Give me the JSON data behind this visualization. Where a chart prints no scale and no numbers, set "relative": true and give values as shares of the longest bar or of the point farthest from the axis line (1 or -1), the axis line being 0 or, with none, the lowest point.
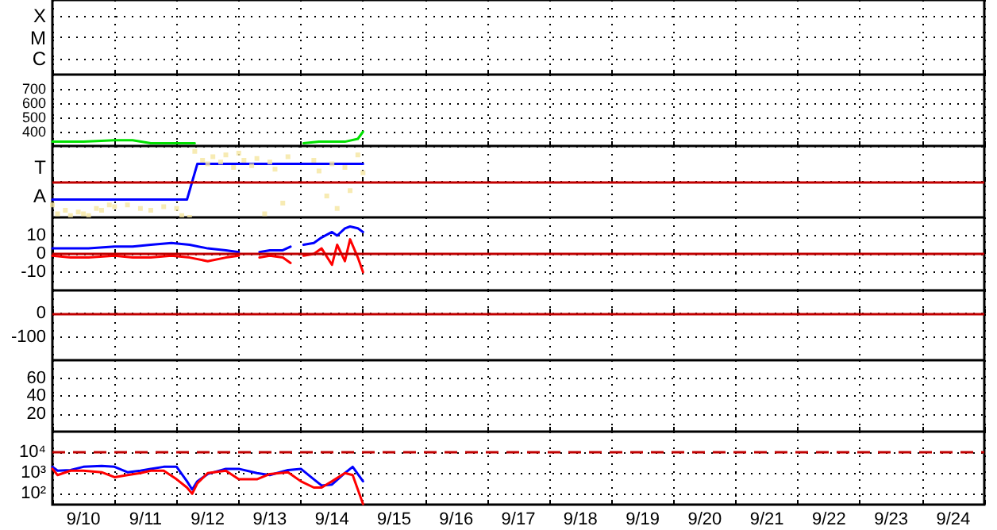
{
  "chart_data": [
    {
      "type": "other",
      "annotations": [
        "X",
        "M",
        "C"
      ]
    },
    {
      "type": "line",
      "xlim": [
        "--09-10T00:00",
        "--09-25T00:00"
      ],
      "ylim": [
        300,
        800
      ],
      "xticks": [
        {
          "value": "--09-10T12:00",
          "label": "9/10"
        },
        {
          "value": "--09-11T12:00",
          "label": "9/11"
        },
        {
          "value": "--09-12T12:00",
          "label": "9/12"
        },
        {
          "value": "--09-13T12:00",
          "label": "9/13"
        },
        {
          "value": "--09-14T12:00",
          "label": "9/14"
        },
        {
          "value": "--09-15T12:00",
          "label": "9/15"
        },
        {
          "value": "--09-16T12:00",
          "label": "9/16"
        },
        {
          "value": "--09-17T12:00",
          "label": "9/17"
        },
        {
          "value": "--09-18T12:00",
          "label": "9/18"
        },
        {
          "value": "--09-19T12:00",
          "label": "9/19"
        },
        {
          "value": "--09-20T12:00",
          "label": "9/20"
        },
        {
          "value": "--09-21T12:00",
          "label": "9/21"
        },
        {
          "value": "--09-22T12:00",
          "label": "9/22"
        },
        {
          "value": "--09-23T12:00",
          "label": "9/23"
        },
        {
          "value": "--09-24T12:00",
          "label": "9/24"
        }
      ],
      "yticks": [
        400,
        500,
        600,
        700
      ],
      "grid": true,
      "tick_labels": "y",
      "x": [
        "--09-10T00:00",
        "--09-10T12:00",
        "--09-11T00:00",
        "--09-11T07:00",
        "--09-11T14:00",
        "--09-12T00:00",
        "--09-12T07:00",
        "--09-12T08:00",
        "--09-14T01:00",
        "--09-14T07:00",
        "--09-14T12:00",
        "--09-14T17:00",
        "--09-14T22:00",
        "--09-15T00:00"
      ],
      "series": [
        {
          "color": "#00e000",
          "values": [
            330,
            330,
            340,
            340,
            320,
            320,
            320,
            null,
            320,
            330,
            330,
            330,
            350,
            400
          ]
        }
      ]
    },
    {
      "type": "line",
      "relative": true,
      "xlim": [
        "--09-10T00:00",
        "--09-25T00:00"
      ],
      "xticks": [
        {
          "value": "--09-10T12:00",
          "label": "9/10"
        },
        {
          "value": "--09-11T12:00",
          "label": "9/11"
        },
        {
          "value": "--09-12T12:00",
          "label": "9/12"
        },
        {
          "value": "--09-13T12:00",
          "label": "9/13"
        },
        {
          "value": "--09-14T12:00",
          "label": "9/14"
        },
        {
          "value": "--09-15T12:00",
          "label": "9/15"
        },
        {
          "value": "--09-16T12:00",
          "label": "9/16"
        },
        {
          "value": "--09-17T12:00",
          "label": "9/17"
        },
        {
          "value": "--09-18T12:00",
          "label": "9/18"
        },
        {
          "value": "--09-19T12:00",
          "label": "9/19"
        },
        {
          "value": "--09-20T12:00",
          "label": "9/20"
        },
        {
          "value": "--09-21T12:00",
          "label": "9/21"
        },
        {
          "value": "--09-22T12:00",
          "label": "9/22"
        },
        {
          "value": "--09-23T12:00",
          "label": "9/23"
        },
        {
          "value": "--09-24T12:00",
          "label": "9/24"
        }
      ],
      "grid": true,
      "tick_labels": "y",
      "annotations": [
        "T",
        "A"
      ],
      "ref_lines": [
        {
          "axis": "y",
          "value": 0,
          "color": "#c00000"
        }
      ],
      "series": [
        {
          "type": "scatter",
          "marker": "square",
          "color": "#f5e6a0",
          "x": [
            "--09-10T00:00",
            "--09-10T02:00",
            "--09-10T05:00",
            "--09-10T07:00",
            "--09-10T10:00",
            "--09-10T12:00",
            "--09-10T14:00",
            "--09-10T17:00",
            "--09-10T19:00",
            "--09-10T22:00",
            "--09-11T00:00",
            "--09-11T05:00",
            "--09-11T10:00",
            "--09-11T14:00",
            "--09-11T19:00",
            "--09-12T00:00",
            "--09-12T02:00",
            "--09-12T05:00",
            "--09-12T07:00",
            "--09-12T10:00",
            "--09-12T12:00",
            "--09-12T14:00",
            "--09-12T17:00",
            "--09-12T19:00",
            "--09-12T22:00",
            "--09-13T00:00",
            "--09-13T02:00",
            "--09-13T05:00",
            "--09-13T07:00",
            "--09-13T10:00",
            "--09-13T12:00",
            "--09-13T14:00",
            "--09-13T17:00",
            "--09-13T19:00",
            "--09-14T05:00",
            "--09-14T07:00",
            "--09-14T10:00",
            "--09-14T12:00",
            "--09-14T14:00",
            "--09-14T17:00",
            "--09-14T19:00",
            "--09-14T22:00",
            "--09-15T00:00"
          ],
          "values": [
            -0.65,
            -0.9,
            -0.8,
            -0.95,
            -0.85,
            -0.9,
            -0.95,
            -0.75,
            -0.8,
            -0.65,
            -0.7,
            -0.65,
            -0.75,
            -0.8,
            -0.7,
            -0.75,
            -0.95,
            -1,
            0.85,
            0.6,
            0.5,
            0.7,
            0.55,
            0.75,
            0.4,
            0.8,
            0.6,
            0.45,
            0.65,
            -0.9,
            0.55,
            0.35,
            -0.6,
            0.7,
            0.6,
            0.3,
            -0.4,
            0.5,
            -0.75,
            0.4,
            -0.25,
            0.75,
            0.25
          ]
        },
        {
          "color": "#0000ff",
          "x": [
            "--09-10T00:00",
            "--09-12T04:00",
            "--09-12T08:00",
            "--09-15T00:00"
          ],
          "values": [
            -0.5,
            -0.5,
            0.5,
            0.5
          ]
        }
      ]
    },
    {
      "type": "line",
      "xlim": [
        "--09-10T00:00",
        "--09-25T00:00"
      ],
      "ylim": [
        -20,
        20
      ],
      "xticks": [
        {
          "value": "--09-10T12:00",
          "label": "9/10"
        },
        {
          "value": "--09-11T12:00",
          "label": "9/11"
        },
        {
          "value": "--09-12T12:00",
          "label": "9/12"
        },
        {
          "value": "--09-13T12:00",
          "label": "9/13"
        },
        {
          "value": "--09-14T12:00",
          "label": "9/14"
        },
        {
          "value": "--09-15T12:00",
          "label": "9/15"
        },
        {
          "value": "--09-16T12:00",
          "label": "9/16"
        },
        {
          "value": "--09-17T12:00",
          "label": "9/17"
        },
        {
          "value": "--09-18T12:00",
          "label": "9/18"
        },
        {
          "value": "--09-19T12:00",
          "label": "9/19"
        },
        {
          "value": "--09-20T12:00",
          "label": "9/20"
        },
        {
          "value": "--09-21T12:00",
          "label": "9/21"
        },
        {
          "value": "--09-22T12:00",
          "label": "9/22"
        },
        {
          "value": "--09-23T12:00",
          "label": "9/23"
        },
        {
          "value": "--09-24T12:00",
          "label": "9/24"
        }
      ],
      "yticks": [
        -10,
        0,
        10
      ],
      "grid": true,
      "tick_labels": "y",
      "ref_lines": [
        {
          "axis": "y",
          "value": 0,
          "color": "#c00000"
        }
      ],
      "x": [
        "--09-10T00:00",
        "--09-10T07:00",
        "--09-10T14:00",
        "--09-11T00:00",
        "--09-11T07:00",
        "--09-11T14:00",
        "--09-11T22:00",
        "--09-12T05:00",
        "--09-12T12:00",
        "--09-12T19:00",
        "--09-13T00:00",
        "--09-13T01:00",
        "--09-13T08:00",
        "--09-13T12:00",
        "--09-13T17:00",
        "--09-13T20:00",
        "--09-13T23:00",
        "--09-14T01:00",
        "--09-14T05:00",
        "--09-14T08:00",
        "--09-14T12:00",
        "--09-14T14:00",
        "--09-14T17:00",
        "--09-14T19:00",
        "--09-14T22:00",
        "--09-15T00:00"
      ],
      "series": [
        {
          "color": "#0000ff",
          "values": [
            3,
            3,
            3,
            4,
            4,
            5,
            6,
            5,
            3,
            2,
            1,
            null,
            1,
            2,
            2,
            4,
            null,
            5,
            6,
            9,
            12,
            10,
            14,
            15,
            14,
            12
          ]
        },
        {
          "color": "#ff0000",
          "values": [
            -1,
            -2,
            -2,
            -1,
            -2,
            -2,
            -1,
            -2,
            -4,
            -2,
            -1,
            null,
            -2,
            -1,
            -2,
            -5,
            null,
            -1,
            0,
            3,
            -6,
            5,
            -4,
            8,
            -2,
            -10
          ]
        }
      ]
    },
    {
      "type": "line",
      "xlim": [
        "--09-10T00:00",
        "--09-25T00:00"
      ],
      "ylim": [
        -200,
        100
      ],
      "xticks": [
        {
          "value": "--09-10T12:00",
          "label": "9/10"
        },
        {
          "value": "--09-11T12:00",
          "label": "9/11"
        },
        {
          "value": "--09-12T12:00",
          "label": "9/12"
        },
        {
          "value": "--09-13T12:00",
          "label": "9/13"
        },
        {
          "value": "--09-14T12:00",
          "label": "9/14"
        },
        {
          "value": "--09-15T12:00",
          "label": "9/15"
        },
        {
          "value": "--09-16T12:00",
          "label": "9/16"
        },
        {
          "value": "--09-17T12:00",
          "label": "9/17"
        },
        {
          "value": "--09-18T12:00",
          "label": "9/18"
        },
        {
          "value": "--09-19T12:00",
          "label": "9/19"
        },
        {
          "value": "--09-20T12:00",
          "label": "9/20"
        },
        {
          "value": "--09-21T12:00",
          "label": "9/21"
        },
        {
          "value": "--09-22T12:00",
          "label": "9/22"
        },
        {
          "value": "--09-23T12:00",
          "label": "9/23"
        },
        {
          "value": "--09-24T12:00",
          "label": "9/24"
        }
      ],
      "yticks": [
        -100,
        0
      ],
      "grid": true,
      "tick_labels": "y",
      "ref_lines": [
        {
          "axis": "y",
          "value": 0,
          "color": "#c00000"
        }
      ]
    },
    {
      "type": "line",
      "xlim": [
        "--09-10T00:00",
        "--09-25T00:00"
      ],
      "ylim": [
        0,
        80
      ],
      "xticks": [
        {
          "value": "--09-10T12:00",
          "label": "9/10"
        },
        {
          "value": "--09-11T12:00",
          "label": "9/11"
        },
        {
          "value": "--09-12T12:00",
          "label": "9/12"
        },
        {
          "value": "--09-13T12:00",
          "label": "9/13"
        },
        {
          "value": "--09-14T12:00",
          "label": "9/14"
        },
        {
          "value": "--09-15T12:00",
          "label": "9/15"
        },
        {
          "value": "--09-16T12:00",
          "label": "9/16"
        },
        {
          "value": "--09-17T12:00",
          "label": "9/17"
        },
        {
          "value": "--09-18T12:00",
          "label": "9/18"
        },
        {
          "value": "--09-19T12:00",
          "label": "9/19"
        },
        {
          "value": "--09-20T12:00",
          "label": "9/20"
        },
        {
          "value": "--09-21T12:00",
          "label": "9/21"
        },
        {
          "value": "--09-22T12:00",
          "label": "9/22"
        },
        {
          "value": "--09-23T12:00",
          "label": "9/23"
        },
        {
          "value": "--09-24T12:00",
          "label": "9/24"
        }
      ],
      "yticks": [
        20,
        40,
        60
      ],
      "grid": true,
      "tick_labels": "y"
    },
    {
      "type": "line",
      "log": "y",
      "xlim": [
        "--09-10T00:00",
        "--09-25T00:00"
      ],
      "ylim": [
        30,
        100000
      ],
      "xticks": [
        {
          "value": "--09-10T12:00",
          "label": "9/10"
        },
        {
          "value": "--09-11T12:00",
          "label": "9/11"
        },
        {
          "value": "--09-12T12:00",
          "label": "9/12"
        },
        {
          "value": "--09-13T12:00",
          "label": "9/13"
        },
        {
          "value": "--09-14T12:00",
          "label": "9/14"
        },
        {
          "value": "--09-15T12:00",
          "label": "9/15"
        },
        {
          "value": "--09-16T12:00",
          "label": "9/16"
        },
        {
          "value": "--09-17T12:00",
          "label": "9/17"
        },
        {
          "value": "--09-18T12:00",
          "label": "9/18"
        },
        {
          "value": "--09-19T12:00",
          "label": "9/19"
        },
        {
          "value": "--09-20T12:00",
          "label": "9/20"
        },
        {
          "value": "--09-21T12:00",
          "label": "9/21"
        },
        {
          "value": "--09-22T12:00",
          "label": "9/22"
        },
        {
          "value": "--09-23T12:00",
          "label": "9/23"
        },
        {
          "value": "--09-24T12:00",
          "label": "9/24"
        }
      ],
      "yticks": [
        {
          "value": 100,
          "label": "10²"
        },
        {
          "value": 1000,
          "label": "10³"
        },
        {
          "value": 10000,
          "label": "10⁴"
        }
      ],
      "grid": true,
      "ref_lines": [
        {
          "axis": "y",
          "value": 10000,
          "color": "#c00000",
          "line_style": "dashed"
        }
      ],
      "x": [
        "--09-10T00:00",
        "--09-10T02:00",
        "--09-10T07:00",
        "--09-10T12:00",
        "--09-10T19:00",
        "--09-11T00:00",
        "--09-11T05:00",
        "--09-11T10:00",
        "--09-11T14:00",
        "--09-11T19:00",
        "--09-12T00:00",
        "--09-12T04:00",
        "--09-12T06:00",
        "--09-12T08:00",
        "--09-12T12:00",
        "--09-12T19:00",
        "--09-13T00:00",
        "--09-13T07:00",
        "--09-13T12:00",
        "--09-13T19:00",
        "--09-14T00:00",
        "--09-14T05:00",
        "--09-14T08:00",
        "--09-14T12:00",
        "--09-14T17:00",
        "--09-14T20:00",
        "--09-15T00:00"
      ],
      "series": [
        {
          "color": "#0000ff",
          "values": [
            2000,
            1300,
            1400,
            2000,
            2200,
            2000,
            1100,
            1300,
            1600,
            2000,
            2000,
            400,
            160,
            400,
            900,
            1600,
            1600,
            1000,
            800,
            1400,
            1600,
            500,
            250,
            280,
            1000,
            2000,
            400
          ]
        },
        {
          "color": "#ff0000",
          "values": [
            1600,
            800,
            1300,
            1300,
            1100,
            630,
            800,
            1000,
            1300,
            1300,
            500,
            200,
            100,
            320,
            1000,
            1300,
            500,
            500,
            900,
            1100,
            400,
            200,
            200,
            400,
            1000,
            800,
            32
          ]
        }
      ]
    }
  ]
}
